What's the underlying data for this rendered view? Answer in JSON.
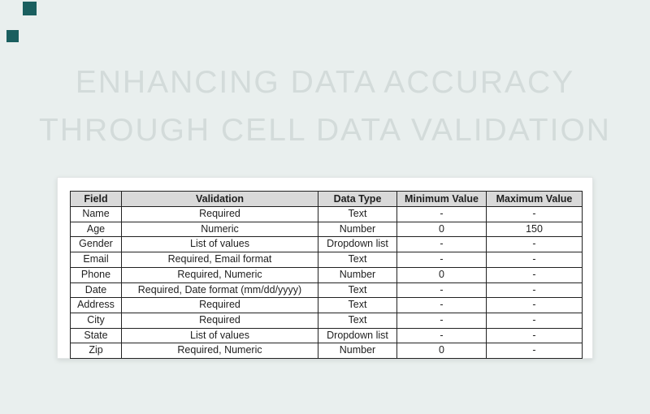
{
  "page": {
    "title_line1": "ENHANCING DATA ACCURACY",
    "title_line2": "THROUGH CELL DATA VALIDATION"
  },
  "colors": {
    "background": "#e9efee",
    "accent_square": "#1a5f5f",
    "title_text": "#d3dbda",
    "table_header_bg": "#d9d9d9",
    "table_border": "#222222"
  },
  "table": {
    "headers": [
      "Field",
      "Validation",
      "Data Type",
      "Minimum Value",
      "Maximum Value"
    ],
    "rows": [
      [
        "Name",
        "Required",
        "Text",
        "-",
        "-"
      ],
      [
        "Age",
        "Numeric",
        "Number",
        "0",
        "150"
      ],
      [
        "Gender",
        "List of values",
        "Dropdown list",
        "-",
        "-"
      ],
      [
        "Email",
        "Required, Email format",
        "Text",
        "-",
        "-"
      ],
      [
        "Phone",
        "Required, Numeric",
        "Number",
        "0",
        "-"
      ],
      [
        "Date",
        "Required, Date format (mm/dd/yyyy)",
        "Text",
        "-",
        "-"
      ],
      [
        "Address",
        "Required",
        "Text",
        "-",
        "-"
      ],
      [
        "City",
        "Required",
        "Text",
        "-",
        "-"
      ],
      [
        "State",
        "List of values",
        "Dropdown list",
        "-",
        "-"
      ],
      [
        "Zip",
        "Required, Numeric",
        "Number",
        "0",
        "-"
      ]
    ]
  }
}
